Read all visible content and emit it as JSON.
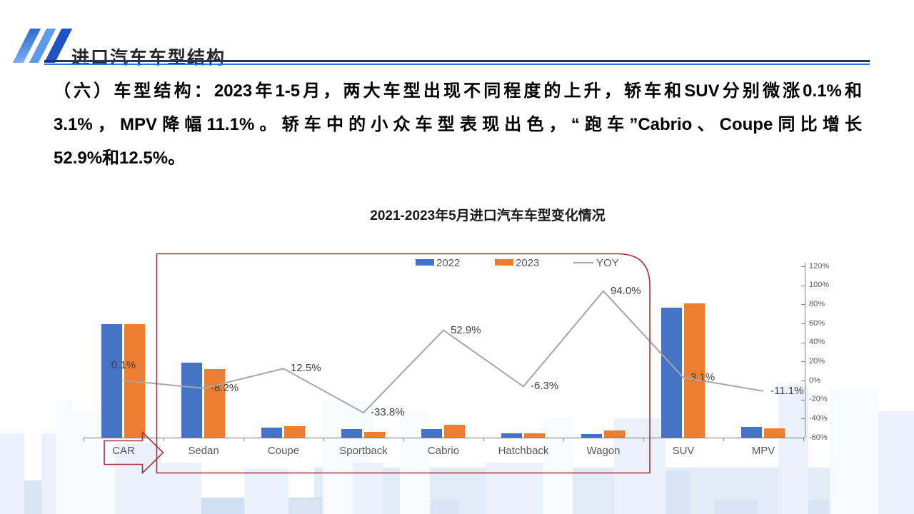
{
  "slide": {
    "header": {
      "title": "进口汽车车型结构"
    },
    "paragraph": {
      "lines": [
        "（六）车型结构：2023年1-5月，两大车型出现不同程度的上升，轿车和SUV分别微涨0.1%和",
        "3.1%，MPV降幅11.1%。轿车中的小众车型表现出色，“跑车”Cabrio、Coupe同比增长",
        "52.9%和12.5%。"
      ]
    }
  },
  "chart_data": {
    "type": "bar",
    "subtype": "grouped-bar-with-line-dual-axis",
    "title": "2021-2023年5月进口汽车车型变化情况",
    "categories": [
      "CAR",
      "Sedan",
      "Coupe",
      "Sportback",
      "Cabrio",
      "Hatchback",
      "Wagon",
      "SUV",
      "MPV"
    ],
    "series": [
      {
        "name": "2022",
        "type": "bar",
        "color": "#4472C4",
        "values": [
          100,
          66,
          8.9,
          7.6,
          7.6,
          4.0,
          3.2,
          114.5,
          9.5
        ]
      },
      {
        "name": "2023",
        "type": "bar",
        "color": "#ED7D31",
        "values": [
          100.1,
          60.6,
          10.0,
          5.0,
          11.6,
          3.7,
          6.2,
          118.1,
          8.4
        ]
      }
    ],
    "left_axis": {
      "visible": false,
      "units": "relative volume (CAR 2022 = 100, estimated from bar heights)"
    },
    "yoy_series": {
      "name": "YOY",
      "type": "line",
      "color": "#A6A6A6",
      "values": [
        0.1,
        -8.2,
        12.5,
        -33.8,
        52.9,
        -6.3,
        94.0,
        3.1,
        -11.1
      ]
    },
    "point_labels": [
      "0.1%",
      "-8.2%",
      "12.5%",
      "-33.8%",
      "52.9%",
      "-6.3%",
      "94.0%",
      "3.1%",
      "-11.1%"
    ],
    "right_axis": {
      "min": -60,
      "max": 120,
      "step": 20,
      "tick_labels": [
        "120%",
        "100%",
        "80%",
        "60%",
        "40%",
        "20%",
        "0%",
        "-20%",
        "-40%",
        "-60%"
      ]
    },
    "legend": [
      {
        "label": "2022",
        "color": "#4472C4",
        "swatch": "box"
      },
      {
        "label": "2023",
        "color": "#ED7D31",
        "swatch": "box"
      },
      {
        "label": "YOY",
        "color": "#A6A6A6",
        "swatch": "line"
      }
    ],
    "legend_position": "top",
    "grid": false,
    "annotations": {
      "highlight_box": {
        "categories_from": "Sedan",
        "categories_to": "Wagon",
        "color": "#A33539"
      },
      "arrow": {
        "category": "CAR",
        "color": "#A33539"
      }
    }
  }
}
